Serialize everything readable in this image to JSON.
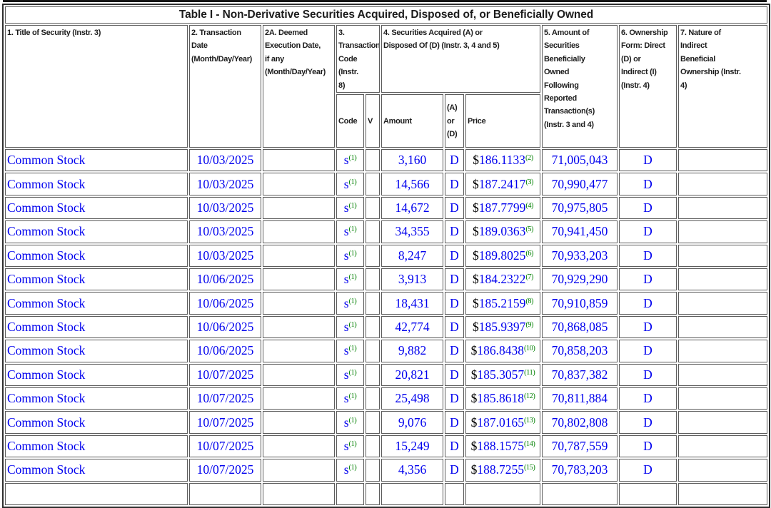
{
  "table": {
    "title": "Table I - Non-Derivative Securities Acquired, Disposed of, or Beneficially Owned",
    "price_prefix": "$",
    "columns": {
      "c1": "1. Title of Security (Instr. 3)",
      "c2": "2. Transaction\nDate\n(Month/Day/Year)",
      "c2a": "2A. Deemed\nExecution Date,\nif any\n(Month/Day/Year)",
      "c3": "3.\nTransaction\nCode (Instr.\n8)",
      "c4": "4. Securities Acquired (A) or\nDisposed Of (D) (Instr. 3, 4 and 5)",
      "c5": "5. Amount of\nSecurities\nBeneficially\nOwned\nFollowing\nReported\nTransaction(s)\n(Instr. 3 and 4)",
      "c6": "6. Ownership\nForm: Direct\n(D) or\nIndirect (I)\n(Instr. 4)",
      "c7": "7. Nature of\nIndirect\nBeneficial\nOwnership (Instr.\n4)",
      "sub_code": "Code",
      "sub_v": "V",
      "sub_amount": "Amount",
      "sub_ad": "(A) or\n(D)",
      "sub_price": "Price"
    },
    "rows": [
      {
        "security": "Common Stock",
        "date": "10/03/2025",
        "deemed": "",
        "code": "S",
        "code_note": "(1)",
        "v": "",
        "amount": "3,160",
        "ad": "D",
        "price": "186.1133",
        "price_note": "(2)",
        "owned": "71,005,043",
        "form": "D",
        "nature": ""
      },
      {
        "security": "Common Stock",
        "date": "10/03/2025",
        "deemed": "",
        "code": "S",
        "code_note": "(1)",
        "v": "",
        "amount": "14,566",
        "ad": "D",
        "price": "187.2417",
        "price_note": "(3)",
        "owned": "70,990,477",
        "form": "D",
        "nature": ""
      },
      {
        "security": "Common Stock",
        "date": "10/03/2025",
        "deemed": "",
        "code": "S",
        "code_note": "(1)",
        "v": "",
        "amount": "14,672",
        "ad": "D",
        "price": "187.7799",
        "price_note": "(4)",
        "owned": "70,975,805",
        "form": "D",
        "nature": ""
      },
      {
        "security": "Common Stock",
        "date": "10/03/2025",
        "deemed": "",
        "code": "S",
        "code_note": "(1)",
        "v": "",
        "amount": "34,355",
        "ad": "D",
        "price": "189.0363",
        "price_note": "(5)",
        "owned": "70,941,450",
        "form": "D",
        "nature": ""
      },
      {
        "security": "Common Stock",
        "date": "10/03/2025",
        "deemed": "",
        "code": "S",
        "code_note": "(1)",
        "v": "",
        "amount": "8,247",
        "ad": "D",
        "price": "189.8025",
        "price_note": "(6)",
        "owned": "70,933,203",
        "form": "D",
        "nature": ""
      },
      {
        "security": "Common Stock",
        "date": "10/06/2025",
        "deemed": "",
        "code": "S",
        "code_note": "(1)",
        "v": "",
        "amount": "3,913",
        "ad": "D",
        "price": "184.2322",
        "price_note": "(7)",
        "owned": "70,929,290",
        "form": "D",
        "nature": ""
      },
      {
        "security": "Common Stock",
        "date": "10/06/2025",
        "deemed": "",
        "code": "S",
        "code_note": "(1)",
        "v": "",
        "amount": "18,431",
        "ad": "D",
        "price": "185.2159",
        "price_note": "(8)",
        "owned": "70,910,859",
        "form": "D",
        "nature": ""
      },
      {
        "security": "Common Stock",
        "date": "10/06/2025",
        "deemed": "",
        "code": "S",
        "code_note": "(1)",
        "v": "",
        "amount": "42,774",
        "ad": "D",
        "price": "185.9397",
        "price_note": "(9)",
        "owned": "70,868,085",
        "form": "D",
        "nature": ""
      },
      {
        "security": "Common Stock",
        "date": "10/06/2025",
        "deemed": "",
        "code": "S",
        "code_note": "(1)",
        "v": "",
        "amount": "9,882",
        "ad": "D",
        "price": "186.8438",
        "price_note": "(10)",
        "owned": "70,858,203",
        "form": "D",
        "nature": ""
      },
      {
        "security": "Common Stock",
        "date": "10/07/2025",
        "deemed": "",
        "code": "S",
        "code_note": "(1)",
        "v": "",
        "amount": "20,821",
        "ad": "D",
        "price": "185.3057",
        "price_note": "(11)",
        "owned": "70,837,382",
        "form": "D",
        "nature": ""
      },
      {
        "security": "Common Stock",
        "date": "10/07/2025",
        "deemed": "",
        "code": "S",
        "code_note": "(1)",
        "v": "",
        "amount": "25,498",
        "ad": "D",
        "price": "185.8618",
        "price_note": "(12)",
        "owned": "70,811,884",
        "form": "D",
        "nature": ""
      },
      {
        "security": "Common Stock",
        "date": "10/07/2025",
        "deemed": "",
        "code": "S",
        "code_note": "(1)",
        "v": "",
        "amount": "9,076",
        "ad": "D",
        "price": "187.0165",
        "price_note": "(13)",
        "owned": "70,802,808",
        "form": "D",
        "nature": ""
      },
      {
        "security": "Common Stock",
        "date": "10/07/2025",
        "deemed": "",
        "code": "S",
        "code_note": "(1)",
        "v": "",
        "amount": "15,249",
        "ad": "D",
        "price": "188.1575",
        "price_note": "(14)",
        "owned": "70,787,559",
        "form": "D",
        "nature": ""
      },
      {
        "security": "Common Stock",
        "date": "10/07/2025",
        "deemed": "",
        "code": "S",
        "code_note": "(1)",
        "v": "",
        "amount": "4,356",
        "ad": "D",
        "price": "188.7255",
        "price_note": "(15)",
        "owned": "70,783,203",
        "form": "D",
        "nature": ""
      }
    ],
    "colors": {
      "data_blue": "#0000EE",
      "footnote_green": "#008000",
      "header_black": "#1c1c1c",
      "border_gray": "#5c5c5c"
    }
  }
}
